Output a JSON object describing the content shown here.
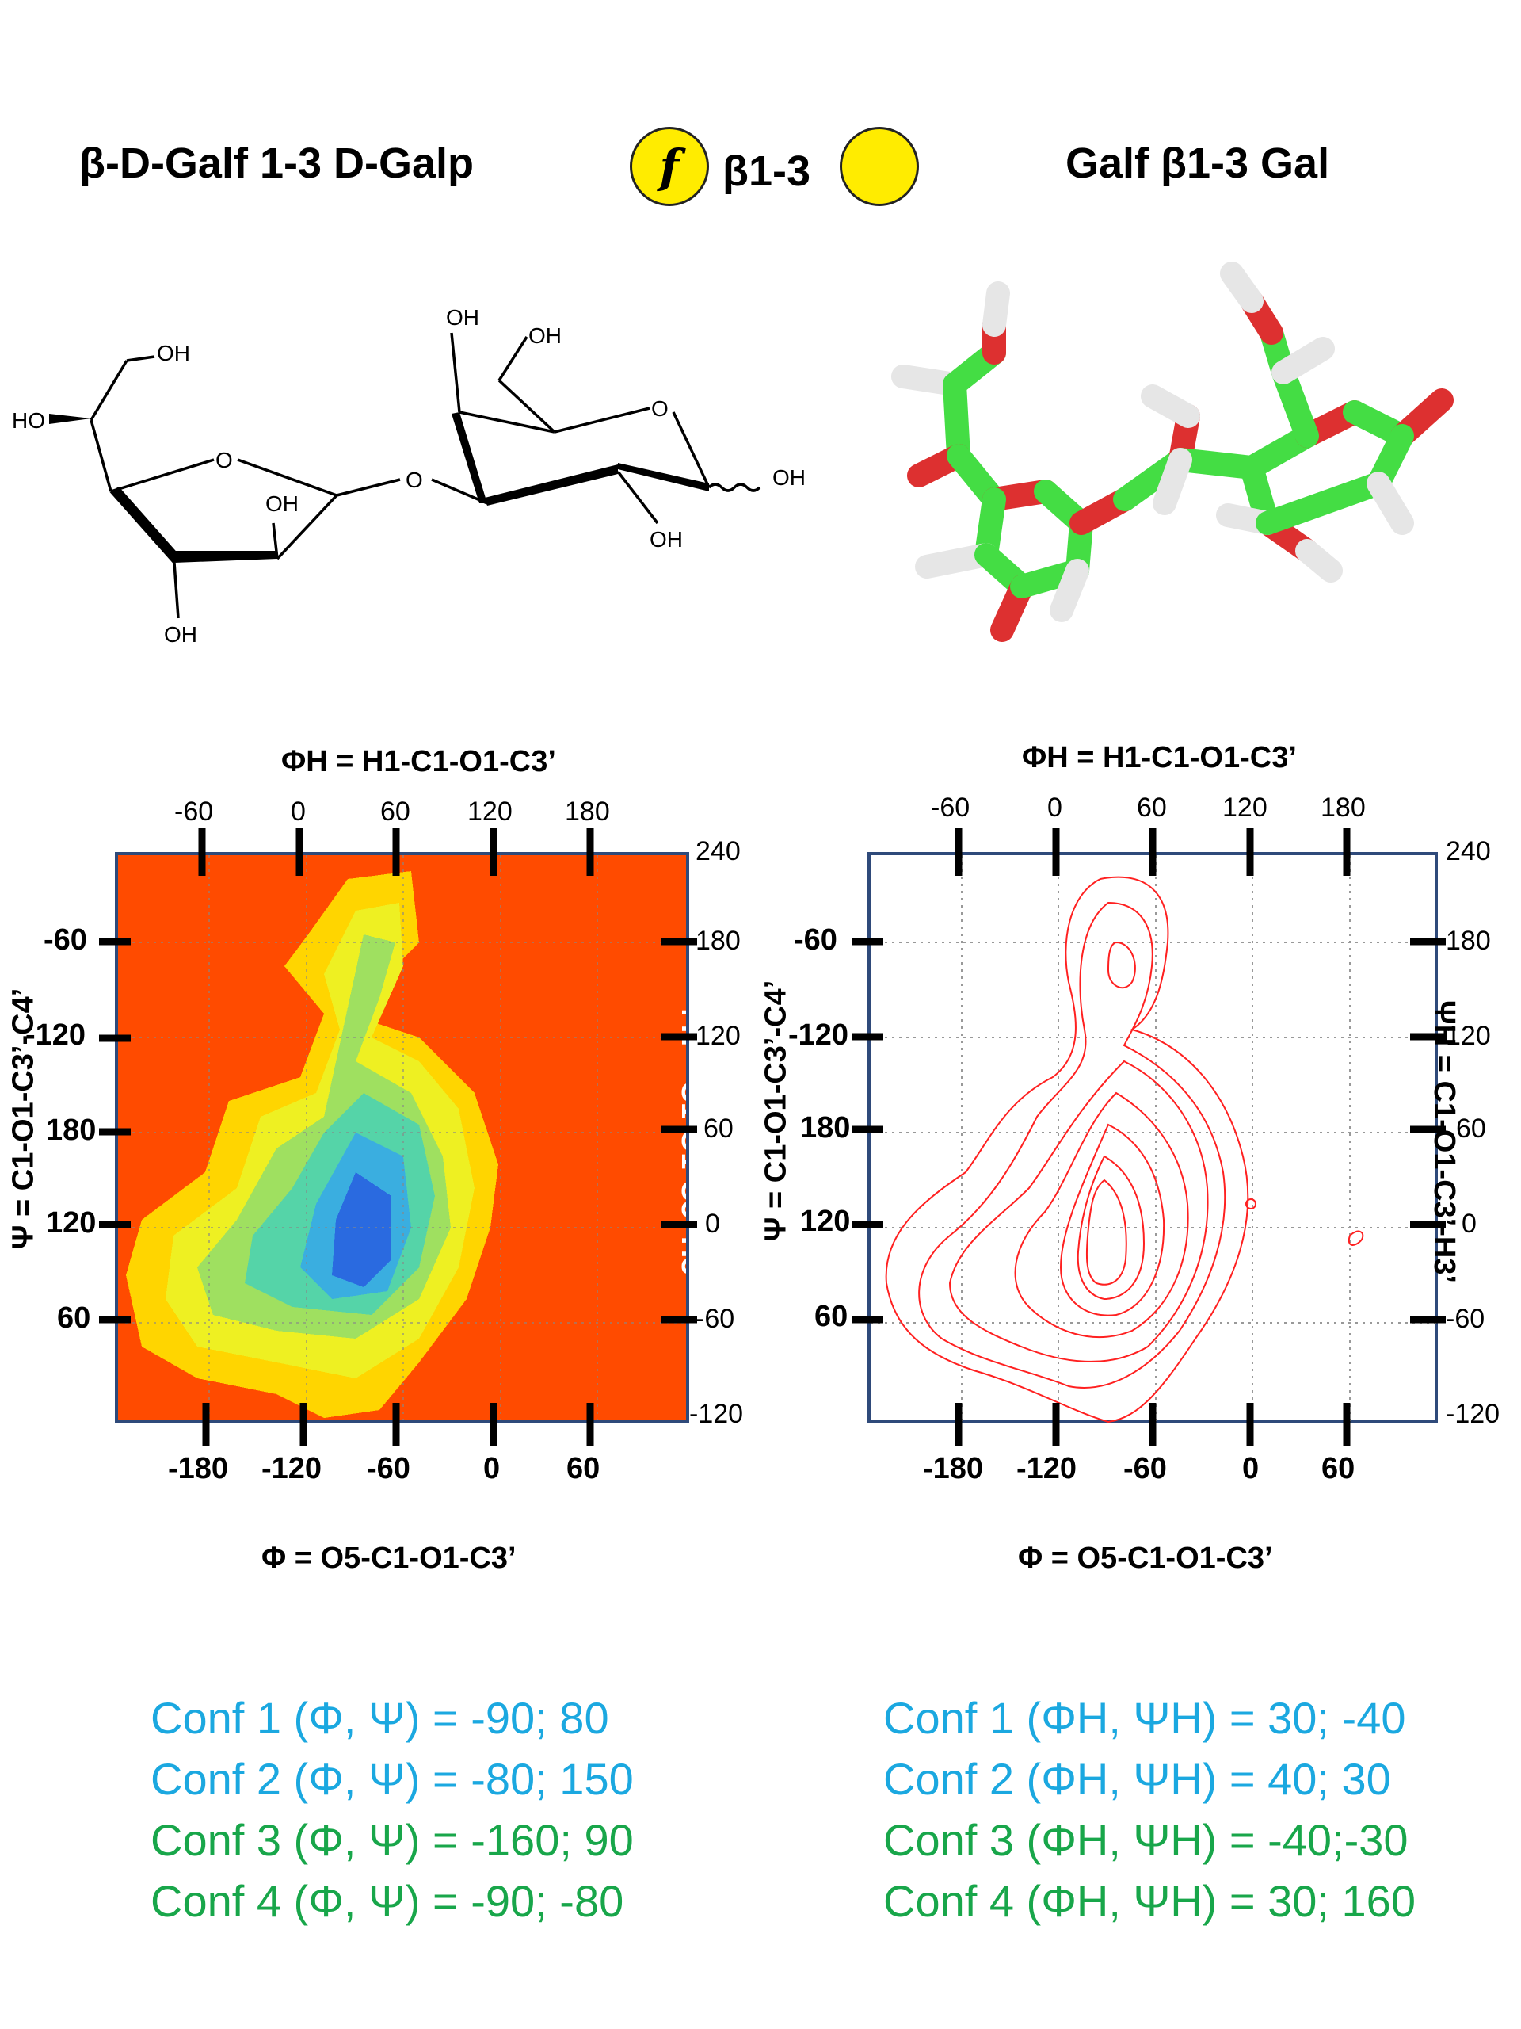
{
  "header": {
    "left_title": "β-D-Galf 1-3 D-Galp",
    "center_linkage": "β1-3",
    "center_symbol_letter": "f",
    "right_title": "Galf β1-3 Gal",
    "symbol_color": "#ffec00"
  },
  "structure": {
    "labels": [
      "HO",
      "OH",
      "O",
      "OH",
      "OH",
      "O",
      "OH",
      "OH",
      "O",
      "OH",
      "OH"
    ]
  },
  "plots": {
    "top_axis_title": "ΦH = H1-C1-O1-C3’",
    "bottom_axis_title": "Φ = O5-C1-O1-C3’",
    "left_axis_title": "Ψ = C1-O1-C3’-C4’",
    "right_axis_title": "ΨH = C1-O1-C3’-H3’",
    "top_ticks": [
      "-60",
      "0",
      "60",
      "120",
      "180"
    ],
    "bottom_ticks": [
      "-180",
      "-120",
      "-60",
      "0",
      "60"
    ],
    "left_ticks": [
      "-60",
      "-120",
      "180",
      "120",
      "60"
    ],
    "right_ticks": [
      "240",
      "180",
      "120",
      "60",
      "0",
      "-60",
      "-120"
    ],
    "heatmap_background": "#ff4b00",
    "contour_color": "#ff2020"
  },
  "conformations": {
    "left": [
      {
        "label": "Conf 1 (Φ, Ψ) = -90;   80",
        "color": "blue"
      },
      {
        "label": "Conf 2 (Φ, Ψ) = -80; 150",
        "color": "blue"
      },
      {
        "label": "Conf 3 (Φ, Ψ) = -160; 90",
        "color": "green"
      },
      {
        "label": "Conf 4 (Φ, Ψ) =  -90; -80",
        "color": "green"
      }
    ],
    "right": [
      {
        "label": "Conf 1 (ΦH, ΨH) = 30; -40",
        "color": "blue"
      },
      {
        "label": "Conf 2 (ΦH, ΨH) = 40; 30",
        "color": "blue"
      },
      {
        "label": "Conf 3 (ΦH, ΨH) = -40;-30",
        "color": "green"
      },
      {
        "label": "Conf 4 (ΦH, ΨH) = 30; 160",
        "color": "green"
      }
    ]
  }
}
